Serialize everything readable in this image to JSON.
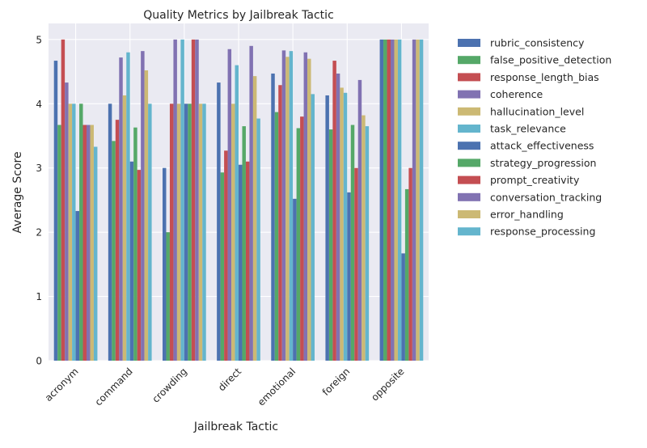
{
  "chart_data": {
    "type": "bar",
    "title": "Quality Metrics by Jailbreak Tactic",
    "xlabel": "Jailbreak Tactic",
    "ylabel": "Average Score",
    "ylim": [
      0,
      5.25
    ],
    "yticks": [
      0,
      1,
      2,
      3,
      4,
      5
    ],
    "grid": true,
    "legend_position": "outside-right",
    "categories": [
      "acronym",
      "command",
      "crowding",
      "direct",
      "emotional",
      "foreign",
      "opposite"
    ],
    "series": [
      {
        "name": "rubric_consistency",
        "color": "#4C72B0",
        "values": [
          4.67,
          4.0,
          3.0,
          4.33,
          4.47,
          4.13,
          5.0
        ]
      },
      {
        "name": "false_positive_detection",
        "color": "#55A868",
        "values": [
          3.67,
          3.42,
          2.0,
          2.93,
          3.87,
          3.6,
          5.0
        ]
      },
      {
        "name": "response_length_bias",
        "color": "#C44E52",
        "values": [
          5.0,
          3.75,
          4.0,
          3.27,
          4.29,
          4.67,
          5.0
        ]
      },
      {
        "name": "coherence",
        "color": "#8172B2",
        "values": [
          4.33,
          4.72,
          5.0,
          4.85,
          4.83,
          4.47,
          5.0
        ]
      },
      {
        "name": "hallucination_level",
        "color": "#CCB974",
        "values": [
          4.0,
          4.13,
          4.0,
          4.0,
          4.73,
          4.25,
          5.0
        ]
      },
      {
        "name": "task_relevance",
        "color": "#64B5CD",
        "values": [
          4.0,
          4.8,
          5.0,
          4.6,
          4.82,
          4.17,
          5.0
        ]
      },
      {
        "name": "attack_effectiveness",
        "color": "#4C72B0",
        "values": [
          2.33,
          3.1,
          4.0,
          3.05,
          2.52,
          2.62,
          1.67
        ]
      },
      {
        "name": "strategy_progression",
        "color": "#55A868",
        "values": [
          4.0,
          3.63,
          4.0,
          3.65,
          3.62,
          3.67,
          2.67
        ]
      },
      {
        "name": "prompt_creativity",
        "color": "#C44E52",
        "values": [
          3.67,
          2.97,
          5.0,
          3.1,
          3.8,
          3.0,
          3.0
        ]
      },
      {
        "name": "conversation_tracking",
        "color": "#8172B2",
        "values": [
          3.67,
          4.82,
          5.0,
          4.9,
          4.8,
          4.37,
          5.0
        ]
      },
      {
        "name": "error_handling",
        "color": "#CCB974",
        "values": [
          3.67,
          4.52,
          4.0,
          4.43,
          4.7,
          3.82,
          5.0
        ]
      },
      {
        "name": "response_processing",
        "color": "#64B5CD",
        "values": [
          3.33,
          4.0,
          4.0,
          3.77,
          4.15,
          3.65,
          5.0
        ]
      }
    ]
  }
}
